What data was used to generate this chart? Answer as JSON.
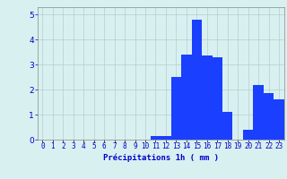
{
  "hours": [
    0,
    1,
    2,
    3,
    4,
    5,
    6,
    7,
    8,
    9,
    10,
    11,
    12,
    13,
    14,
    15,
    16,
    17,
    18,
    19,
    20,
    21,
    22,
    23
  ],
  "values": [
    0,
    0,
    0,
    0,
    0,
    0,
    0,
    0,
    0,
    0,
    0,
    0.15,
    0.15,
    2.5,
    3.4,
    4.8,
    3.35,
    3.3,
    1.1,
    0.0,
    0.4,
    2.2,
    1.85,
    1.6
  ],
  "bar_color": "#1a3fff",
  "background_color": "#d8f0f0",
  "grid_color": "#b8cece",
  "xlabel": "Précipitations 1h ( mm )",
  "xlabel_color": "#0000cc",
  "tick_color": "#0000cc",
  "ylim": [
    0,
    5.3
  ],
  "yticks": [
    0,
    1,
    2,
    3,
    4,
    5
  ],
  "bar_width": 1.0,
  "tick_fontsize": 5.5,
  "ylabel_fontsize": 6.5
}
